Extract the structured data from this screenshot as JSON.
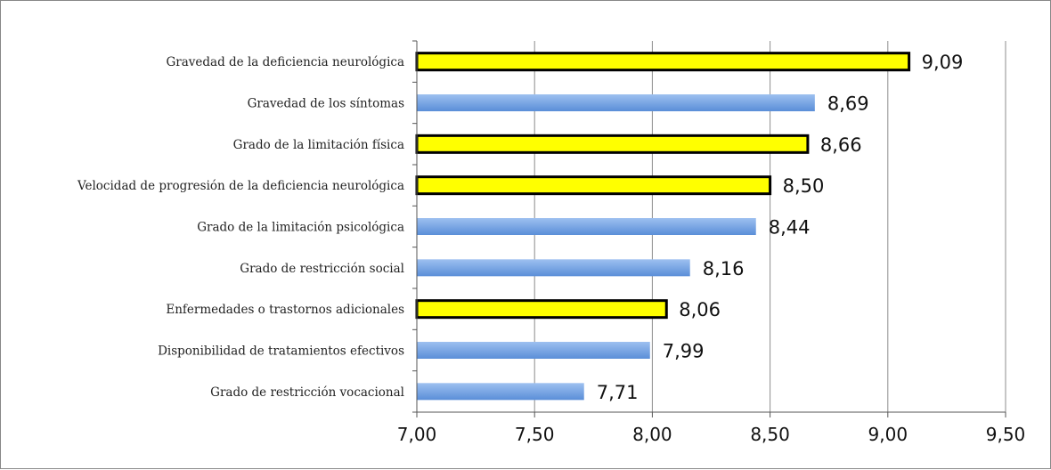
{
  "chart_data": {
    "type": "bar",
    "orientation": "horizontal",
    "title": "",
    "xlabel": "",
    "ylabel": "",
    "xlim": [
      7.0,
      9.5
    ],
    "x_ticks": [
      7.0,
      7.5,
      8.0,
      8.5,
      9.0,
      9.5
    ],
    "x_tick_labels": [
      "7,00",
      "7,50",
      "8,00",
      "8,50",
      "9,00",
      "9,50"
    ],
    "grid": "vertical",
    "categories": [
      "Gravedad de la deficiencia neurológica",
      "Gravedad de los síntomas",
      "Grado de la limitación física",
      "Velocidad de progresión de la deficiencia neurológica",
      "Grado de la limitación psicológica",
      "Grado de restricción social",
      "Enfermedades o trastornos adicionales",
      "Disponibilidad de tratamientos efectivos",
      "Grado de restricción vocacional"
    ],
    "values": [
      9.09,
      8.69,
      8.66,
      8.5,
      8.44,
      8.16,
      8.06,
      7.99,
      7.71
    ],
    "value_labels": [
      "9,09",
      "8,69",
      "8,66",
      "8,50",
      "8,44",
      "8,16",
      "8,06",
      "7,99",
      "7,71"
    ],
    "highlighted": [
      true,
      false,
      true,
      true,
      false,
      false,
      true,
      false,
      false
    ],
    "colors": {
      "highlight_fill": "#ffff00",
      "highlight_stroke": "#000000",
      "normal_fill_top": "#9dc0f0",
      "normal_fill_bottom": "#5a8ed8",
      "grid": "#8c8c8c",
      "axis": "#555555"
    }
  }
}
